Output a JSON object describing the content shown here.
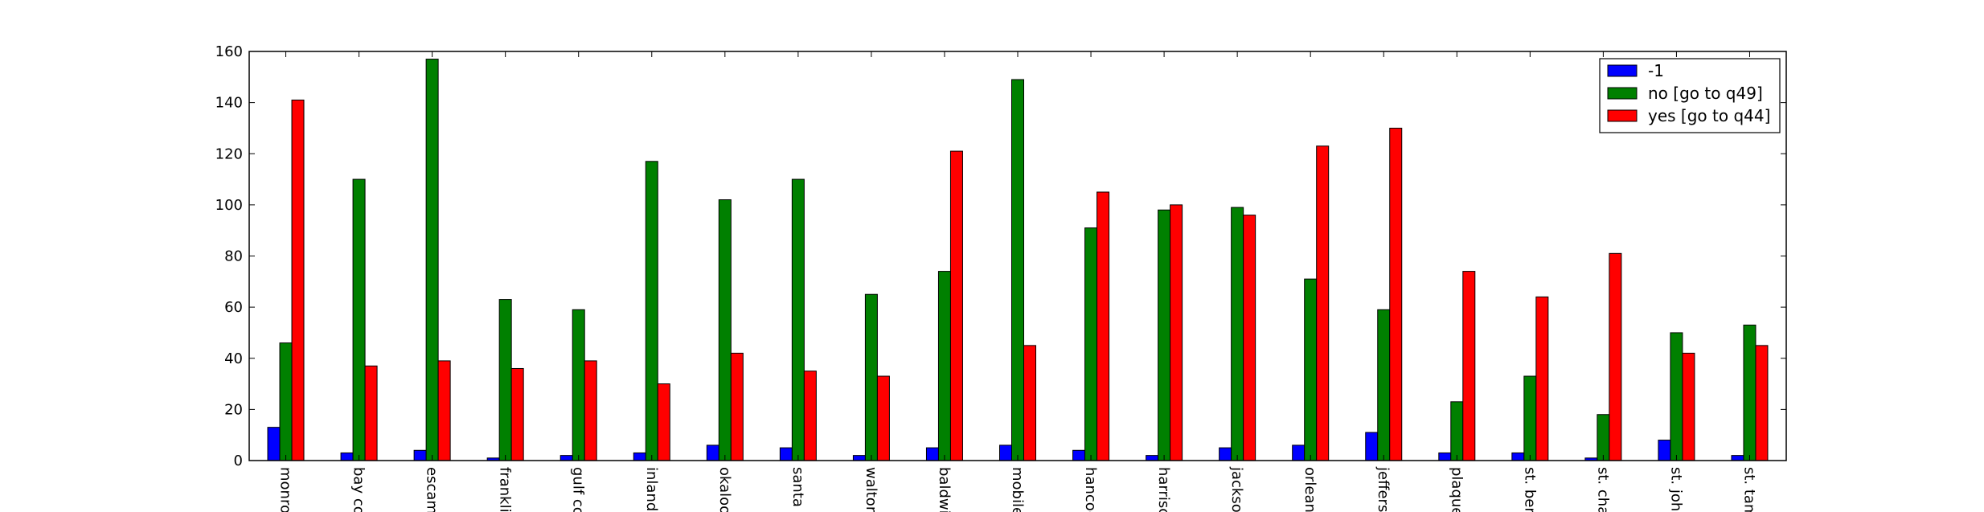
{
  "chart_data": {
    "type": "bar",
    "title": "",
    "xlabel": "",
    "ylabel": "",
    "ylim": [
      0,
      160
    ],
    "yticks": [
      0,
      20,
      40,
      60,
      80,
      100,
      120,
      140,
      160
    ],
    "grid": false,
    "legend_position": "top-right",
    "categories": [
      "monroe",
      "bay co",
      "escaml",
      "franklin",
      "gulf co",
      "inland",
      "okaloo",
      "santa r",
      "walton",
      "baldwi",
      "mobile",
      "hancoc",
      "harriso",
      "jackso",
      "orleans",
      "jeffers",
      "plaque",
      "st. ber",
      "st. cha",
      "st. john",
      "st. tam"
    ],
    "series": [
      {
        "name": "-1",
        "color": "#0000ff",
        "values": [
          13,
          3,
          4,
          1,
          2,
          3,
          6,
          5,
          2,
          5,
          6,
          4,
          2,
          5,
          6,
          11,
          3,
          3,
          1,
          8,
          2
        ]
      },
      {
        "name": "no [go to q49]",
        "color": "#008000",
        "values": [
          46,
          110,
          157,
          63,
          59,
          117,
          102,
          110,
          65,
          74,
          149,
          91,
          98,
          99,
          71,
          59,
          23,
          33,
          18,
          50,
          53
        ]
      },
      {
        "name": "yes [go to q44]",
        "color": "#ff0000",
        "values": [
          141,
          37,
          39,
          36,
          39,
          30,
          42,
          35,
          33,
          121,
          45,
          105,
          100,
          96,
          123,
          130,
          74,
          64,
          81,
          42,
          45
        ]
      }
    ]
  }
}
